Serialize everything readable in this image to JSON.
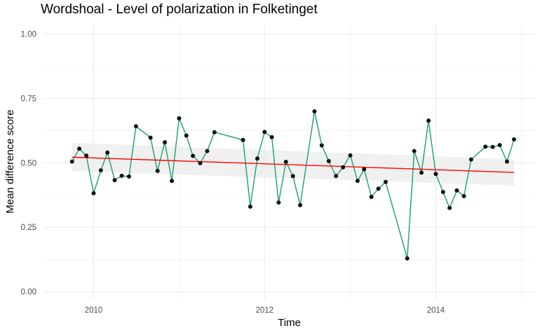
{
  "chart_data": {
    "type": "line",
    "title": "Wordshoal - Level of polarization in Folketinget",
    "xlabel": "Time",
    "ylabel": "Mean difference score",
    "xlim": [
      "2009-06-01",
      "2015-03-01"
    ],
    "ylim": [
      -0.03,
      1.04
    ],
    "x_ticks": [
      "2010-01-01",
      "2012-01-01",
      "2014-01-01"
    ],
    "x_tick_labels": [
      "2010",
      "2012",
      "2014"
    ],
    "y_ticks": [
      0.0,
      0.25,
      0.5,
      0.75,
      1.0
    ],
    "y_tick_labels": [
      "0.00",
      "0.25",
      "0.50",
      "0.75",
      "1.00"
    ],
    "grid": true,
    "colors": {
      "line": "#1b9e77",
      "point": "#111111",
      "trend": "#ff0000",
      "ribbon": "#ebebeb",
      "grid": "#ebebeb"
    },
    "series": [
      {
        "x": [
          "2009-10-01",
          "2009-11-01",
          "2009-12-01",
          "2010-01-01",
          "2010-02-01",
          "2010-03-01",
          "2010-04-01",
          "2010-05-01",
          "2010-06-01",
          "2010-07-01",
          "2010-09-01",
          "2010-10-01",
          "2010-11-01",
          "2010-12-01",
          "2011-01-01",
          "2011-02-01",
          "2011-03-01",
          "2011-04-01",
          "2011-05-01",
          "2011-06-01",
          "2011-10-01",
          "2011-11-01",
          "2011-12-01",
          "2012-01-01",
          "2012-02-01",
          "2012-03-01",
          "2012-04-01",
          "2012-05-01",
          "2012-06-01",
          "2012-08-01",
          "2012-09-01",
          "2012-10-01",
          "2012-11-01",
          "2012-12-01",
          "2013-01-01",
          "2013-02-01",
          "2013-03-01",
          "2013-04-01",
          "2013-05-01",
          "2013-06-01",
          "2013-09-01",
          "2013-10-01",
          "2013-11-01",
          "2013-12-01",
          "2014-01-01",
          "2014-02-01",
          "2014-03-01",
          "2014-04-01",
          "2014-05-01",
          "2014-06-01",
          "2014-08-01",
          "2014-09-01",
          "2014-10-01",
          "2014-11-01",
          "2014-12-01"
        ],
        "y": [
          0.505,
          0.555,
          0.528,
          0.382,
          0.471,
          0.54,
          0.433,
          0.45,
          0.447,
          0.642,
          0.598,
          0.469,
          0.58,
          0.43,
          0.673,
          0.606,
          0.527,
          0.499,
          0.546,
          0.619,
          0.589,
          0.33,
          0.517,
          0.62,
          0.6,
          0.346,
          0.504,
          0.449,
          0.336,
          0.7,
          0.568,
          0.507,
          0.449,
          0.483,
          0.529,
          0.43,
          0.475,
          0.368,
          0.4,
          0.426,
          0.129,
          0.546,
          0.462,
          0.664,
          0.457,
          0.387,
          0.325,
          0.393,
          0.371,
          0.513,
          0.563,
          0.562,
          0.569,
          0.505,
          0.591
        ]
      }
    ],
    "trend": {
      "type": "linear",
      "x": [
        "2009-10-01",
        "2014-12-01"
      ],
      "y": [
        0.522,
        0.463
      ],
      "ribbon_lower": [
        0.468,
        0.412
      ],
      "ribbon_upper": [
        0.578,
        0.514
      ]
    }
  }
}
